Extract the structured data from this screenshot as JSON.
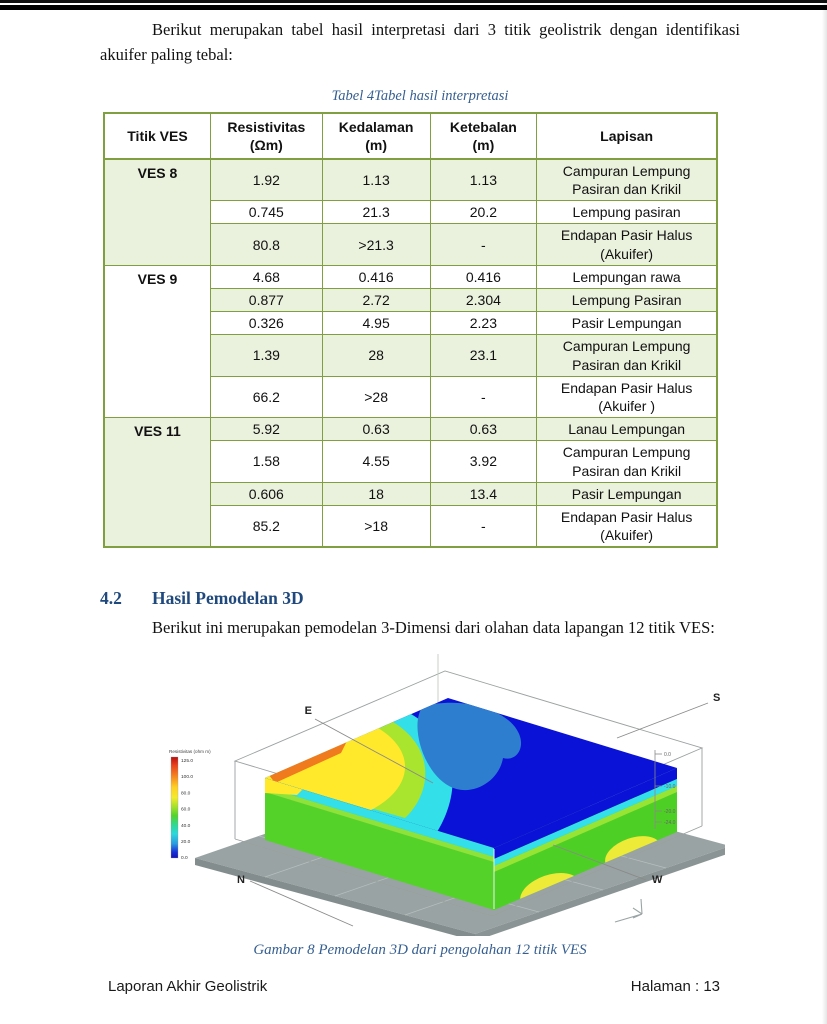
{
  "document": {
    "intro_paragraph": "Berikut merupakan tabel hasil interpretasi dari 3 titik geolistrik dengan identifikasi akuifer paling tebal:",
    "table_caption": "Tabel 4Tabel hasil interpretasi",
    "section_number": "4.2",
    "section_title": "Hasil Pemodelan 3D",
    "section_paragraph": "Berikut ini merupakan pemodelan 3-Dimensi dari olahan data lapangan 12 titik VES:",
    "figure_caption": "Gambar 8 Pemodelan 3D dari pengolahan 12 titik VES",
    "footer": {
      "left": "Laporan Akhir  Geolistrik",
      "right": "Halaman : 13"
    }
  },
  "table": {
    "headers": [
      {
        "label": "Titik VES",
        "unit": ""
      },
      {
        "label": "Resistivitas",
        "unit": "(Ωm)"
      },
      {
        "label": "Kedalaman",
        "unit": "(m)"
      },
      {
        "label": "Ketebalan",
        "unit": "(m)"
      },
      {
        "label": "Lapisan",
        "unit": ""
      }
    ],
    "groups": [
      {
        "titik": "VES 8",
        "rows": [
          [
            "1.92",
            "1.13",
            "1.13",
            "Campuran Lempung Pasiran dan Krikil"
          ],
          [
            "0.745",
            "21.3",
            "20.2",
            "Lempung pasiran"
          ],
          [
            "80.8",
            ">21.3",
            "-",
            "Endapan Pasir Halus (Akuifer)"
          ]
        ]
      },
      {
        "titik": "VES 9",
        "rows": [
          [
            "4.68",
            "0.416",
            "0.416",
            "Lempungan rawa"
          ],
          [
            "0.877",
            "2.72",
            "2.304",
            "Lempung Pasiran"
          ],
          [
            "0.326",
            "4.95",
            "2.23",
            "Pasir Lempungan"
          ],
          [
            "1.39",
            "28",
            "23.1",
            "Campuran Lempung Pasiran dan Krikil"
          ],
          [
            "66.2",
            ">28",
            "-",
            "Endapan Pasir Halus (Akuifer )"
          ]
        ]
      },
      {
        "titik": "VES 11",
        "rows": [
          [
            "5.92",
            "0.63",
            "0.63",
            "Lanau Lempungan"
          ],
          [
            "1.58",
            "4.55",
            "3.92",
            "Campuran Lempung Pasiran dan Krikil"
          ],
          [
            "0.606",
            "18",
            "13.4",
            "Pasir Lempungan"
          ],
          [
            "85.2",
            ">18",
            "-",
            "Endapan Pasir Halus (Akuifer)"
          ]
        ]
      }
    ]
  },
  "figure": {
    "legend_title": "Resistivitas (ohm m)",
    "legend_labels": [
      "125.0",
      "100.0",
      "80.0",
      "60.0",
      "40.0",
      "20.0",
      "0.0"
    ],
    "compass": {
      "east": "E",
      "south": "S",
      "north": "N",
      "west": "W"
    },
    "depth_ticks": [
      "0.0",
      "-10.0",
      "-20.0",
      "-24.0"
    ]
  },
  "colors": {
    "table_border": "#7f9f40",
    "table_band_fill": "#eaf1dd",
    "caption_blue": "#365f91",
    "heading_blue": "#1f497d",
    "model_deep_blue": "#0a12d8",
    "model_medium_blue": "#2e7ed0",
    "model_cyan": "#33dfe8",
    "model_green": "#55d22a",
    "model_yellow": "#ffe92a",
    "model_orange": "#f07a1e",
    "base_gray": "#9aa3a3"
  }
}
